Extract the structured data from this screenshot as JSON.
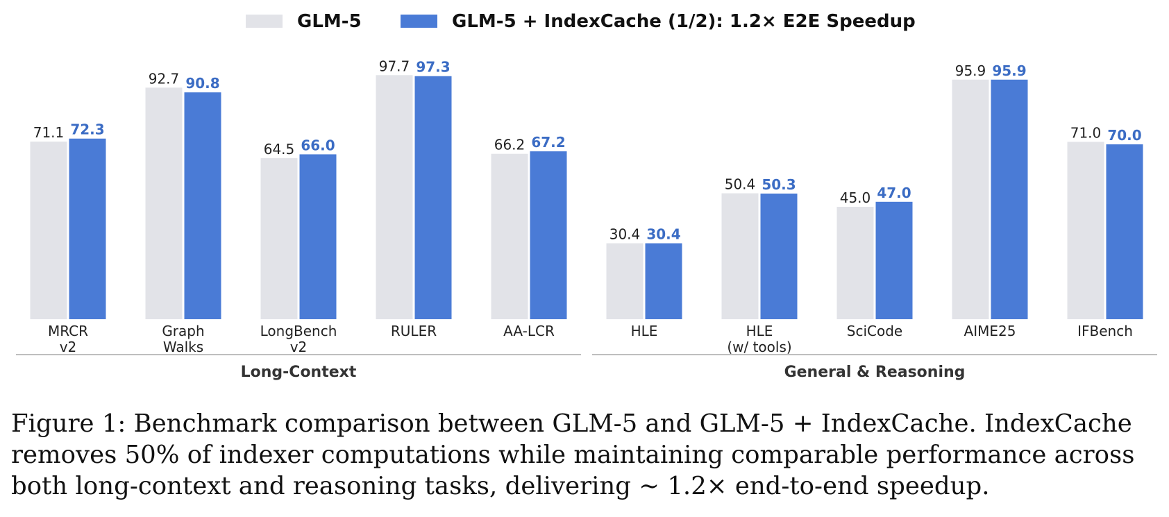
{
  "chart_data": {
    "type": "bar",
    "categories": [
      "MRCR\nv2",
      "Graph\nWalks",
      "LongBench\nv2",
      "RULER",
      "AA-LCR",
      "HLE",
      "HLE\n(w/ tools)",
      "SciCode",
      "AIME25",
      "IFBench"
    ],
    "series": [
      {
        "name": "GLM-5",
        "values": [
          71.1,
          92.7,
          64.5,
          97.7,
          66.2,
          30.4,
          50.4,
          45.0,
          95.9,
          71.0
        ],
        "labels": [
          "71.1",
          "92.7",
          "64.5",
          "97.7",
          "66.2",
          "30.4",
          "50.4",
          "45.0",
          "95.9",
          "71.0"
        ],
        "color": "#e2e3e8"
      },
      {
        "name": "GLM-5 + IndexCache (1/2): 1.2× E2E Speedup",
        "values": [
          72.3,
          90.8,
          66.0,
          97.3,
          67.2,
          30.4,
          50.3,
          47.0,
          95.9,
          70.0
        ],
        "labels": [
          "72.3",
          "90.8",
          "66.0",
          "97.3",
          "67.2",
          "30.4",
          "50.3",
          "47.0",
          "95.9",
          "70.0"
        ],
        "color": "#4a7bd6",
        "label_color": "#3b6cc4"
      }
    ],
    "ylim": [
      0,
      100
    ],
    "groups": [
      {
        "label": "Long-Context",
        "start": 0,
        "end": 4
      },
      {
        "label": "General & Reasoning",
        "start": 5,
        "end": 9
      }
    ],
    "legend": "top-center",
    "grid": false
  },
  "caption": "Figure 1: Benchmark comparison between GLM-5 and GLM-5 + IndexCache. IndexCache removes 50% of indexer computations while maintaining comparable performance across both long-context and reasoning tasks, delivering ∼ 1.2× end-to-end speedup."
}
